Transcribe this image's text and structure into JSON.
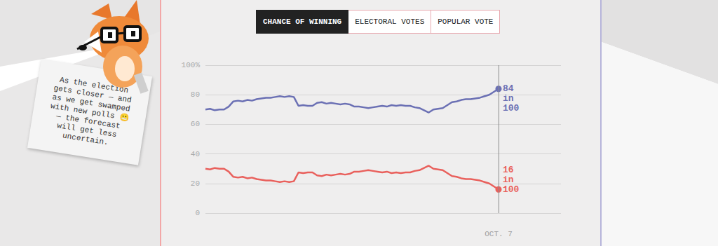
{
  "tabs": [
    "CHANCE OF WINNING",
    "ELECTORAL VOTES",
    "POPULAR VOTE"
  ],
  "active_tab": "CHANCE OF WINNING",
  "note": [
    "As the election",
    "gets closer — and",
    "as we get swamped",
    "with new polls 😬",
    "— the forecast",
    "will get less",
    "uncertain."
  ],
  "chart_data": {
    "type": "line",
    "categories": [
      null,
      null,
      null,
      null,
      null,
      null,
      null,
      null,
      null,
      null,
      null,
      null,
      null,
      null,
      null,
      null,
      null,
      null,
      null,
      null,
      null,
      null,
      null,
      null,
      null,
      null,
      null,
      null,
      null,
      null,
      null,
      null,
      null,
      null,
      null,
      null,
      null,
      null,
      null,
      null,
      null,
      null,
      null,
      null,
      null,
      null,
      null,
      null,
      null,
      null,
      null,
      null,
      null,
      null,
      null,
      null,
      null,
      null,
      null,
      null,
      null,
      null,
      null,
      "OCT. 7"
    ],
    "series": [
      {
        "color": "#6b70b4",
        "end_label": "84 in 100",
        "values": [
          70,
          70.5,
          69.5,
          70,
          70,
          72,
          75.5,
          76,
          75.5,
          76.5,
          76,
          77,
          77.5,
          78,
          78,
          78.5,
          79,
          78.5,
          79,
          78.5,
          72.5,
          73,
          72.5,
          72.5,
          74.5,
          75,
          74,
          74.5,
          74,
          73.5,
          74,
          73.5,
          72,
          72,
          71.5,
          71,
          71.5,
          72,
          72.5,
          72,
          73,
          72.5,
          73,
          72.5,
          72.5,
          71.5,
          71,
          69.5,
          68,
          70,
          70.5,
          71,
          73,
          75,
          75.5,
          76.5,
          77,
          77,
          77.5,
          78,
          79,
          80,
          82,
          84
        ]
      },
      {
        "color": "#e9605c",
        "end_label": "16 in 100",
        "values": [
          30,
          29.5,
          30.5,
          30,
          30,
          28,
          24.5,
          24,
          24.5,
          23.5,
          24,
          23,
          22.5,
          22,
          22,
          21.5,
          21,
          21.5,
          21,
          21.5,
          27.5,
          27,
          27.5,
          27.5,
          25.5,
          25,
          26,
          25.5,
          26,
          26.5,
          26,
          26.5,
          28,
          28,
          28.5,
          29,
          28.5,
          28,
          27.5,
          28,
          27,
          27.5,
          27,
          27.5,
          27.5,
          28.5,
          29,
          30.5,
          32,
          30,
          29.5,
          29,
          27,
          25,
          24.5,
          23.5,
          23,
          23,
          22.5,
          22,
          21,
          20,
          18,
          16
        ]
      }
    ],
    "ylim": [
      0,
      100
    ],
    "yticks": [
      0,
      20,
      40,
      60,
      80,
      {
        "value": 100,
        "label": "100%"
      }
    ],
    "grid": true
  }
}
